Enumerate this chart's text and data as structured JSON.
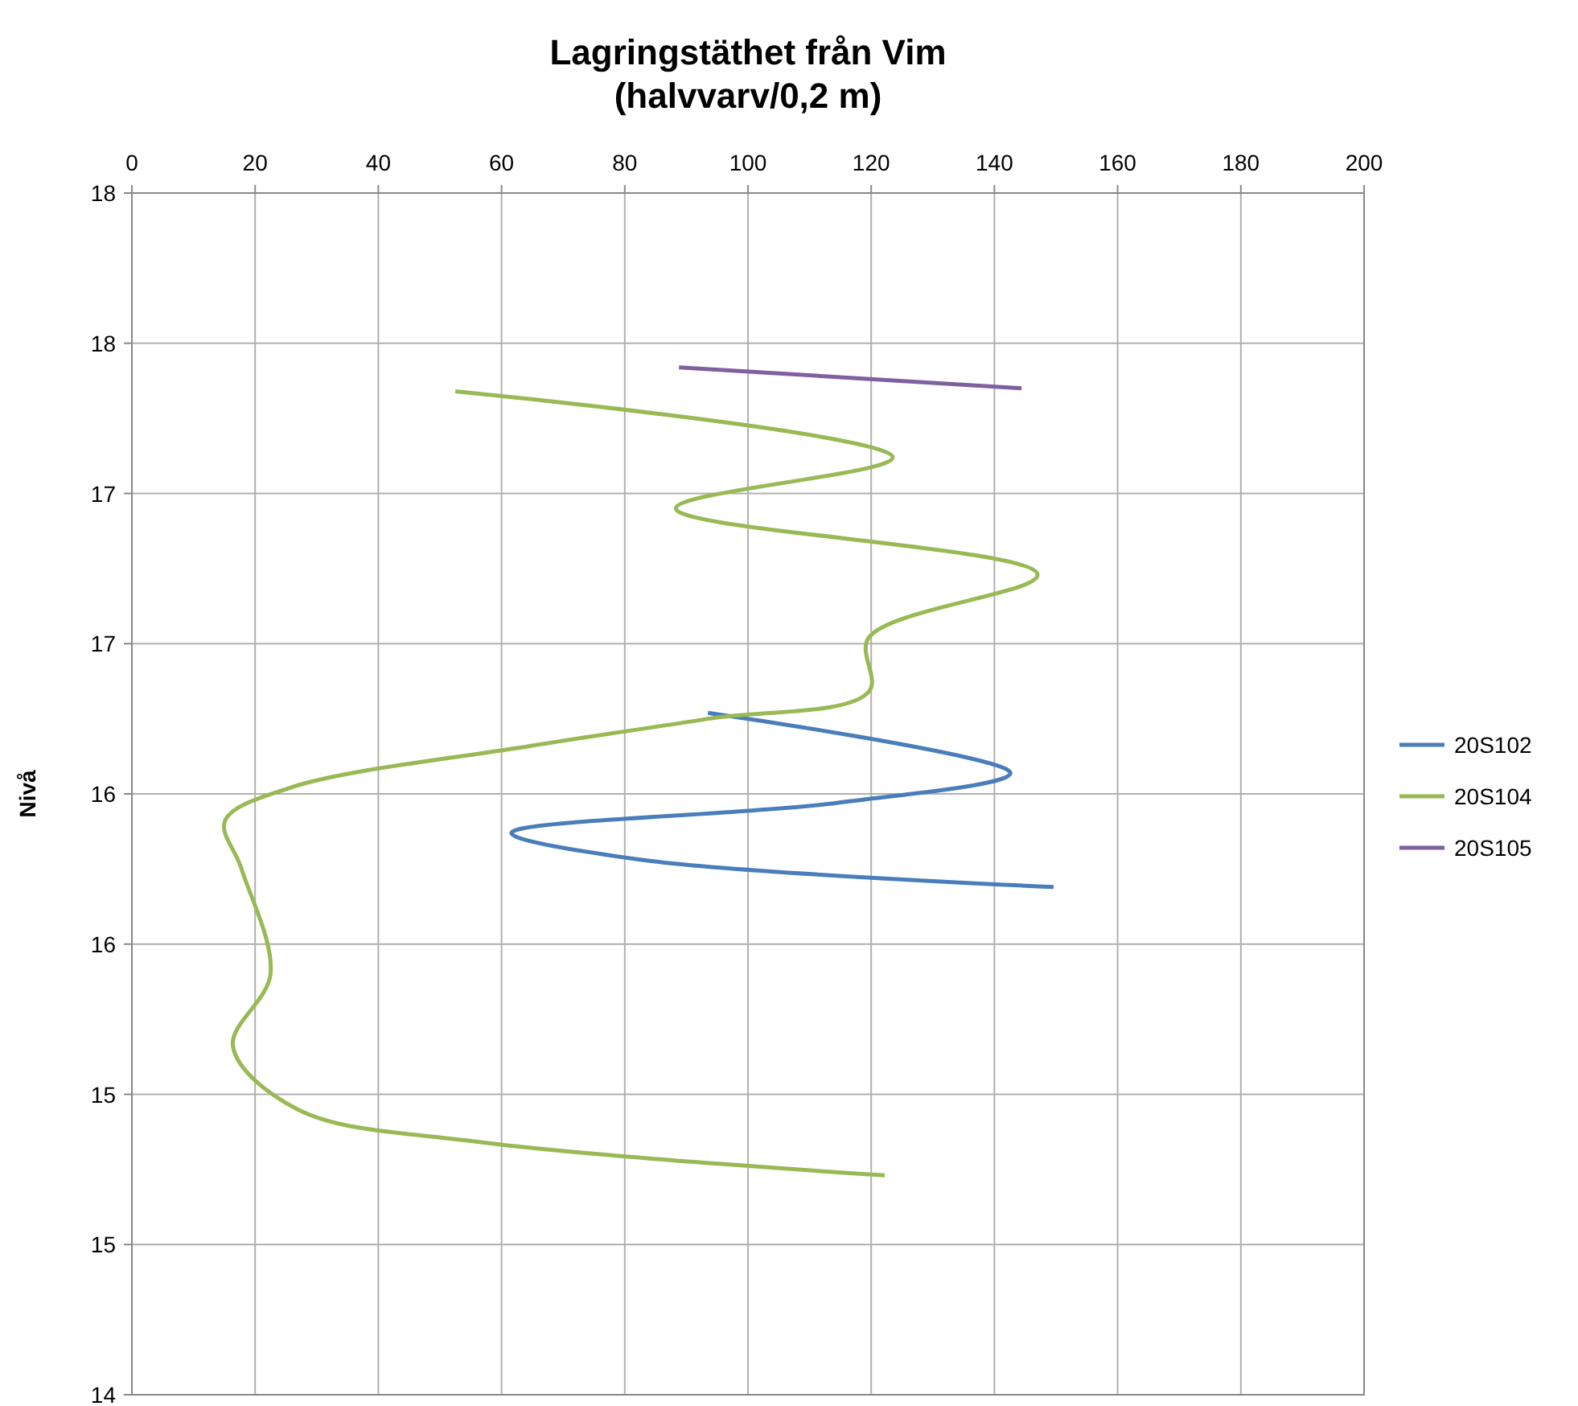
{
  "chart_data": {
    "type": "line",
    "title": "Lagringstäthet från Vim",
    "subtitle": "(halvvarv/0,2 m)",
    "ylabel": "Nivå",
    "xlim": [
      0,
      200
    ],
    "xticks": [
      0,
      20,
      40,
      60,
      80,
      100,
      120,
      140,
      160,
      180,
      200
    ],
    "ylim": [
      14,
      18
    ],
    "yticks": [
      14,
      {
        "value": 14.5,
        "label": "15"
      },
      15,
      {
        "value": 15.5,
        "label": "16"
      },
      16,
      {
        "value": 16.5,
        "label": "17"
      },
      17,
      {
        "value": 17.5,
        "label": "18"
      },
      18
    ],
    "grid": true,
    "legend": "right",
    "marker": "none",
    "line_style": "solid",
    "series": [
      {
        "name": "20S102",
        "color": "#4a7ebb",
        "x": [
          93.5,
          142.6,
          114.4,
          61.6,
          83,
          149.6
        ],
        "values": [
          16.27,
          16.07,
          15.97,
          15.87,
          15.78,
          15.69
        ]
      },
      {
        "name": "20S104",
        "color": "#98b954",
        "x": [
          52.5,
          123.5,
          88.3,
          147,
          119.6,
          119.6,
          93.5,
          64.8,
          25.6,
          15.1,
          17.8,
          22.5,
          16.4,
          26.9,
          56.9,
          122.2
        ],
        "values": [
          17.34,
          17.12,
          16.95,
          16.73,
          16.52,
          16.34,
          16.25,
          16.16,
          16.02,
          15.91,
          15.75,
          15.4,
          15.16,
          14.95,
          14.84,
          14.73
        ]
      },
      {
        "name": "20S105",
        "color": "#7f60a0",
        "x": [
          88.8,
          144.4
        ],
        "values": [
          17.42,
          17.35
        ]
      }
    ]
  }
}
